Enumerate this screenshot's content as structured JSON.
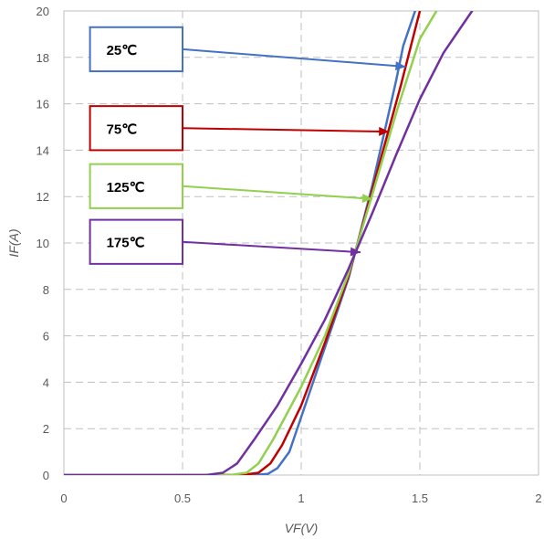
{
  "chart_data": {
    "type": "line",
    "xlabel": "VF(V)",
    "ylabel": "IF(A)",
    "xlim": [
      0,
      2
    ],
    "ylim": [
      0,
      20
    ],
    "x_ticks": [
      "0",
      "0.5",
      "1",
      "1.5",
      "2"
    ],
    "y_ticks": [
      "0",
      "2",
      "4",
      "6",
      "8",
      "10",
      "12",
      "14",
      "16",
      "18",
      "20"
    ],
    "grid": true,
    "series": [
      {
        "name": "25℃",
        "color": "#4472c4",
        "points": [
          [
            0,
            0
          ],
          [
            0.8,
            0
          ],
          [
            0.86,
            0.05
          ],
          [
            0.9,
            0.3
          ],
          [
            0.95,
            1.0
          ],
          [
            1.0,
            2.5
          ],
          [
            1.1,
            5.5
          ],
          [
            1.2,
            8.5
          ],
          [
            1.3,
            12.5
          ],
          [
            1.4,
            17.0
          ],
          [
            1.43,
            18.5
          ],
          [
            1.48,
            20.0
          ]
        ]
      },
      {
        "name": "75℃",
        "color": "#c00000",
        "points": [
          [
            0,
            0
          ],
          [
            0.75,
            0
          ],
          [
            0.82,
            0.1
          ],
          [
            0.87,
            0.5
          ],
          [
            0.92,
            1.3
          ],
          [
            1.0,
            3.0
          ],
          [
            1.1,
            5.7
          ],
          [
            1.2,
            8.6
          ],
          [
            1.3,
            12.3
          ],
          [
            1.42,
            16.8
          ],
          [
            1.5,
            20.0
          ]
        ]
      },
      {
        "name": "125℃",
        "color": "#92d050",
        "points": [
          [
            0,
            0
          ],
          [
            0.7,
            0
          ],
          [
            0.77,
            0.1
          ],
          [
            0.82,
            0.5
          ],
          [
            0.88,
            1.5
          ],
          [
            1.0,
            3.8
          ],
          [
            1.1,
            6.0
          ],
          [
            1.2,
            8.7
          ],
          [
            1.3,
            12.1
          ],
          [
            1.4,
            15.6
          ],
          [
            1.5,
            18.8
          ],
          [
            1.57,
            20.0
          ]
        ]
      },
      {
        "name": "175℃",
        "color": "#7030a0",
        "points": [
          [
            0,
            0
          ],
          [
            0.6,
            0
          ],
          [
            0.67,
            0.1
          ],
          [
            0.73,
            0.5
          ],
          [
            0.8,
            1.5
          ],
          [
            0.9,
            3.0
          ],
          [
            1.0,
            4.8
          ],
          [
            1.1,
            6.7
          ],
          [
            1.2,
            8.9
          ],
          [
            1.3,
            11.3
          ],
          [
            1.4,
            13.8
          ],
          [
            1.5,
            16.2
          ],
          [
            1.6,
            18.2
          ],
          [
            1.72,
            20.0
          ]
        ]
      }
    ],
    "annotations": [
      {
        "label": "25℃",
        "color": "#4472c4",
        "box_x": [
          0.11,
          0.5
        ],
        "box_y": [
          19.3,
          17.4
        ],
        "arrow_to": [
          1.44,
          17.6
        ]
      },
      {
        "label": "75℃",
        "color": "#c00000",
        "box_x": [
          0.11,
          0.5
        ],
        "box_y": [
          15.9,
          14.0
        ],
        "arrow_to": [
          1.37,
          14.8
        ]
      },
      {
        "label": "125℃",
        "color": "#92d050",
        "box_x": [
          0.11,
          0.5
        ],
        "box_y": [
          13.4,
          11.5
        ],
        "arrow_to": [
          1.3,
          11.9
        ]
      },
      {
        "label": "175℃",
        "color": "#7030a0",
        "box_x": [
          0.11,
          0.5
        ],
        "box_y": [
          11.0,
          9.1
        ],
        "arrow_to": [
          1.25,
          9.6
        ]
      }
    ]
  }
}
